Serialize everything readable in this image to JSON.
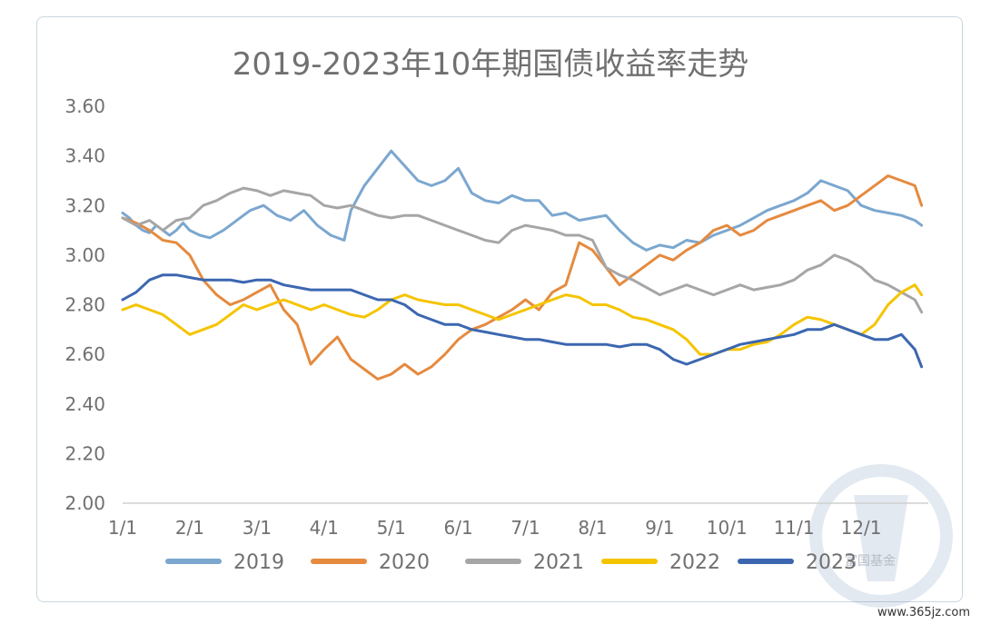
{
  "chart_data": {
    "type": "line",
    "title": "2019-2023年10年期国债收益率走势",
    "xlabel": "",
    "ylabel": "",
    "ylim": [
      2.0,
      3.6
    ],
    "yticks": [
      "2.00",
      "2.20",
      "2.40",
      "2.60",
      "2.80",
      "3.00",
      "3.20",
      "3.40",
      "3.60"
    ],
    "x_ticks": [
      "1/1",
      "2/1",
      "3/1",
      "4/1",
      "5/1",
      "6/1",
      "7/1",
      "8/1",
      "9/1",
      "10/1",
      "11/1",
      "12/1"
    ],
    "legend_position": "bottom",
    "series": [
      {
        "name": "2019",
        "color": "#7ba7cf",
        "x": [
          0,
          0.1,
          0.2,
          0.3,
          0.4,
          0.5,
          0.6,
          0.7,
          0.8,
          0.9,
          1,
          1.15,
          1.3,
          1.5,
          1.7,
          1.9,
          2.1,
          2.3,
          2.5,
          2.7,
          2.9,
          3.1,
          3.3,
          3.4,
          3.6,
          3.8,
          4,
          4.2,
          4.4,
          4.6,
          4.8,
          5,
          5.2,
          5.4,
          5.6,
          5.8,
          6,
          6.2,
          6.4,
          6.6,
          6.8,
          7,
          7.2,
          7.4,
          7.6,
          7.8,
          8,
          8.2,
          8.4,
          8.6,
          8.8,
          9,
          9.2,
          9.4,
          9.6,
          9.8,
          10,
          10.2,
          10.4,
          10.6,
          10.8,
          11,
          11.2,
          11.4,
          11.6,
          11.8,
          11.9
        ],
        "values": [
          3.17,
          3.15,
          3.12,
          3.1,
          3.09,
          3.12,
          3.1,
          3.08,
          3.1,
          3.13,
          3.1,
          3.08,
          3.07,
          3.1,
          3.14,
          3.18,
          3.2,
          3.16,
          3.14,
          3.18,
          3.12,
          3.08,
          3.06,
          3.18,
          3.28,
          3.35,
          3.42,
          3.36,
          3.3,
          3.28,
          3.3,
          3.35,
          3.25,
          3.22,
          3.21,
          3.24,
          3.22,
          3.22,
          3.16,
          3.17,
          3.14,
          3.15,
          3.16,
          3.1,
          3.05,
          3.02,
          3.04,
          3.03,
          3.06,
          3.05,
          3.08,
          3.1,
          3.12,
          3.15,
          3.18,
          3.2,
          3.22,
          3.25,
          3.3,
          3.28,
          3.26,
          3.2,
          3.18,
          3.17,
          3.16,
          3.14,
          3.12
        ]
      },
      {
        "name": "2020",
        "color": "#e58a3f",
        "x": [
          0,
          0.2,
          0.4,
          0.6,
          0.8,
          1,
          1.2,
          1.4,
          1.6,
          1.8,
          2,
          2.2,
          2.4,
          2.6,
          2.8,
          3,
          3.2,
          3.4,
          3.6,
          3.8,
          4,
          4.2,
          4.4,
          4.6,
          4.8,
          5,
          5.2,
          5.4,
          5.6,
          5.8,
          6,
          6.2,
          6.4,
          6.6,
          6.8,
          7,
          7.2,
          7.4,
          7.6,
          7.8,
          8,
          8.2,
          8.4,
          8.6,
          8.8,
          9,
          9.2,
          9.4,
          9.6,
          9.8,
          10,
          10.2,
          10.4,
          10.6,
          10.8,
          11,
          11.2,
          11.4,
          11.6,
          11.8,
          11.9
        ],
        "values": [
          3.15,
          3.13,
          3.1,
          3.06,
          3.05,
          3.0,
          2.9,
          2.84,
          2.8,
          2.82,
          2.85,
          2.88,
          2.78,
          2.72,
          2.56,
          2.62,
          2.67,
          2.58,
          2.54,
          2.5,
          2.52,
          2.56,
          2.52,
          2.55,
          2.6,
          2.66,
          2.7,
          2.72,
          2.75,
          2.78,
          2.82,
          2.78,
          2.85,
          2.88,
          3.05,
          3.02,
          2.95,
          2.88,
          2.92,
          2.96,
          3.0,
          2.98,
          3.02,
          3.05,
          3.1,
          3.12,
          3.08,
          3.1,
          3.14,
          3.16,
          3.18,
          3.2,
          3.22,
          3.18,
          3.2,
          3.24,
          3.28,
          3.32,
          3.3,
          3.28,
          3.2
        ]
      },
      {
        "name": "2021",
        "color": "#a6a6a6",
        "x": [
          0,
          0.2,
          0.4,
          0.6,
          0.8,
          1,
          1.2,
          1.4,
          1.6,
          1.8,
          2,
          2.2,
          2.4,
          2.6,
          2.8,
          3,
          3.2,
          3.4,
          3.6,
          3.8,
          4,
          4.2,
          4.4,
          4.6,
          4.8,
          5,
          5.2,
          5.4,
          5.6,
          5.8,
          6,
          6.2,
          6.4,
          6.6,
          6.8,
          7,
          7.2,
          7.4,
          7.6,
          7.8,
          8,
          8.2,
          8.4,
          8.6,
          8.8,
          9,
          9.2,
          9.4,
          9.6,
          9.8,
          10,
          10.2,
          10.4,
          10.6,
          10.8,
          11,
          11.2,
          11.4,
          11.6,
          11.8,
          11.9
        ],
        "values": [
          3.15,
          3.12,
          3.14,
          3.1,
          3.14,
          3.15,
          3.2,
          3.22,
          3.25,
          3.27,
          3.26,
          3.24,
          3.26,
          3.25,
          3.24,
          3.2,
          3.19,
          3.2,
          3.18,
          3.16,
          3.15,
          3.16,
          3.16,
          3.14,
          3.12,
          3.1,
          3.08,
          3.06,
          3.05,
          3.1,
          3.12,
          3.11,
          3.1,
          3.08,
          3.08,
          3.06,
          2.95,
          2.92,
          2.9,
          2.87,
          2.84,
          2.86,
          2.88,
          2.86,
          2.84,
          2.86,
          2.88,
          2.86,
          2.87,
          2.88,
          2.9,
          2.94,
          2.96,
          3.0,
          2.98,
          2.95,
          2.9,
          2.88,
          2.85,
          2.82,
          2.77
        ]
      },
      {
        "name": "2022",
        "color": "#f5c400",
        "x": [
          0,
          0.2,
          0.4,
          0.6,
          0.8,
          1,
          1.2,
          1.4,
          1.6,
          1.8,
          2,
          2.2,
          2.4,
          2.6,
          2.8,
          3,
          3.2,
          3.4,
          3.6,
          3.8,
          4,
          4.2,
          4.4,
          4.6,
          4.8,
          5,
          5.2,
          5.4,
          5.6,
          5.8,
          6,
          6.2,
          6.4,
          6.6,
          6.8,
          7,
          7.2,
          7.4,
          7.6,
          7.8,
          8,
          8.2,
          8.4,
          8.6,
          8.8,
          9,
          9.2,
          9.4,
          9.6,
          9.8,
          10,
          10.2,
          10.4,
          10.6,
          10.8,
          11,
          11.2,
          11.4,
          11.6,
          11.8,
          11.9
        ],
        "values": [
          2.78,
          2.8,
          2.78,
          2.76,
          2.72,
          2.68,
          2.7,
          2.72,
          2.76,
          2.8,
          2.78,
          2.8,
          2.82,
          2.8,
          2.78,
          2.8,
          2.78,
          2.76,
          2.75,
          2.78,
          2.82,
          2.84,
          2.82,
          2.81,
          2.8,
          2.8,
          2.78,
          2.76,
          2.74,
          2.76,
          2.78,
          2.8,
          2.82,
          2.84,
          2.83,
          2.8,
          2.8,
          2.78,
          2.75,
          2.74,
          2.72,
          2.7,
          2.66,
          2.6,
          2.6,
          2.62,
          2.62,
          2.64,
          2.65,
          2.68,
          2.72,
          2.75,
          2.74,
          2.72,
          2.7,
          2.68,
          2.72,
          2.8,
          2.85,
          2.88,
          2.84
        ]
      },
      {
        "name": "2023",
        "color": "#3c67b0",
        "x": [
          0,
          0.2,
          0.4,
          0.6,
          0.8,
          1,
          1.2,
          1.4,
          1.6,
          1.8,
          2,
          2.2,
          2.4,
          2.6,
          2.8,
          3,
          3.2,
          3.4,
          3.6,
          3.8,
          4,
          4.2,
          4.4,
          4.6,
          4.8,
          5,
          5.2,
          5.4,
          5.6,
          5.8,
          6,
          6.2,
          6.4,
          6.6,
          6.8,
          7,
          7.2,
          7.4,
          7.6,
          7.8,
          8,
          8.2,
          8.4,
          8.6,
          8.8,
          9,
          9.2,
          9.4,
          9.6,
          9.8,
          10,
          10.2,
          10.4,
          10.6,
          10.8,
          11,
          11.2,
          11.4,
          11.6,
          11.8,
          11.9
        ],
        "values": [
          2.82,
          2.85,
          2.9,
          2.92,
          2.92,
          2.91,
          2.9,
          2.9,
          2.9,
          2.89,
          2.9,
          2.9,
          2.88,
          2.87,
          2.86,
          2.86,
          2.86,
          2.86,
          2.84,
          2.82,
          2.82,
          2.8,
          2.76,
          2.74,
          2.72,
          2.72,
          2.7,
          2.69,
          2.68,
          2.67,
          2.66,
          2.66,
          2.65,
          2.64,
          2.64,
          2.64,
          2.64,
          2.63,
          2.64,
          2.64,
          2.62,
          2.58,
          2.56,
          2.58,
          2.6,
          2.62,
          2.64,
          2.65,
          2.66,
          2.67,
          2.68,
          2.7,
          2.7,
          2.72,
          2.7,
          2.68,
          2.66,
          2.66,
          2.68,
          2.62,
          2.55
        ]
      }
    ]
  },
  "watermark": {
    "brand": "富国基金",
    "site": "www.365jz.com"
  }
}
